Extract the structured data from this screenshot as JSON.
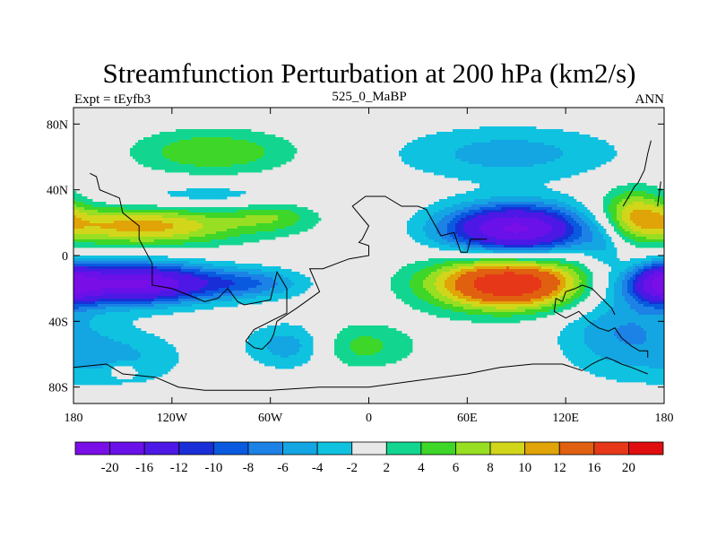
{
  "chart_data": {
    "type": "heatmap",
    "title": "Streamfunction Perturbation at 200 hPa (km2/s)",
    "left_label": "Expt = tEyfb3",
    "center_label": "525_0_MaBP",
    "right_label": "ANN",
    "x_ticks": [
      "180",
      "120W",
      "60W",
      "0",
      "60E",
      "120E",
      "180"
    ],
    "y_ticks": [
      "80N",
      "40N",
      "0",
      "40S",
      "80S"
    ],
    "x_range": [
      -180,
      180
    ],
    "y_range": [
      -90,
      90
    ],
    "x_tick_values": [
      -180,
      -120,
      -60,
      0,
      60,
      120,
      180
    ],
    "y_tick_values": [
      80,
      40,
      0,
      -40,
      -80
    ],
    "colorbar_labels": [
      "-20",
      "-16",
      "-12",
      "-10",
      "-8",
      "-6",
      "-4",
      "-2",
      "2",
      "4",
      "6",
      "8",
      "10",
      "12",
      "16",
      "20"
    ],
    "colorbar_levels": [
      -20,
      -16,
      -12,
      -10,
      -8,
      -6,
      -4,
      -2,
      2,
      4,
      6,
      8,
      10,
      12,
      16,
      20
    ],
    "colorbar_colors": [
      "#7a0ee6",
      "#6a10e8",
      "#4d18e6",
      "#1a2ed8",
      "#0a5ae0",
      "#1c82e6",
      "#13a6e2",
      "#0fc2e0",
      "#e8e8e8",
      "#12d690",
      "#3ed628",
      "#98de22",
      "#d2d61a",
      "#e0a408",
      "#e06010",
      "#e63818",
      "#e00e0e"
    ],
    "blobs": [
      {
        "lon": 90,
        "lat": 16,
        "rlon": 44,
        "rlat": 15,
        "peak": -21
      },
      {
        "lon": 143,
        "lat": 8,
        "rlon": 12,
        "rlat": 18,
        "peak": -3.5
      },
      {
        "lon": -95,
        "lat": 36,
        "rlon": 70,
        "rlat": 9,
        "peak": -3.5
      },
      {
        "lon": 85,
        "lat": 62,
        "rlon": 70,
        "rlat": 17,
        "peak": -5
      },
      {
        "lon": -145,
        "lat": -17,
        "rlon": 52,
        "rlat": 12,
        "peak": -21
      },
      {
        "lon": -70,
        "lat": -17,
        "rlon": 32,
        "rlat": 9,
        "peak": -6
      },
      {
        "lon": -45,
        "lat": -55,
        "rlon": 28,
        "rlat": 14,
        "peak": -8
      },
      {
        "lon": -150,
        "lat": -62,
        "rlon": 40,
        "rlat": 18,
        "peak": -4
      },
      {
        "lon": 155,
        "lat": -45,
        "rlon": 40,
        "rlat": 28,
        "peak": -6
      },
      {
        "lon": 178,
        "lat": -17,
        "rlon": 15,
        "rlat": 12,
        "peak": -10
      },
      {
        "lon": -138,
        "lat": 18,
        "rlon": 62,
        "rlat": 12,
        "peak": 11
      },
      {
        "lon": -58,
        "lat": 25,
        "rlon": 28,
        "rlat": 10,
        "peak": 5
      },
      {
        "lon": -95,
        "lat": 63,
        "rlon": 50,
        "rlat": 14,
        "peak": 6
      },
      {
        "lon": 86,
        "lat": -17,
        "rlon": 48,
        "rlat": 16,
        "peak": 20
      },
      {
        "lon": -15,
        "lat": -55,
        "rlon": 40,
        "rlat": 14,
        "peak": 6
      },
      {
        "lon": 162,
        "lat": 26,
        "rlon": 24,
        "rlat": 16,
        "peak": 9
      },
      {
        "lon": -150,
        "lat": -70,
        "rlon": 8,
        "rlat": 4,
        "peak": 4
      }
    ],
    "continent_outlines": [
      [
        [
          -170,
          50
        ],
        [
          -166,
          48
        ],
        [
          -164,
          40
        ],
        [
          -152,
          35
        ],
        [
          -150,
          26
        ],
        [
          -140,
          18
        ],
        [
          -140,
          10
        ],
        [
          -132,
          -5
        ],
        [
          -132,
          -18
        ],
        [
          -120,
          -20
        ],
        [
          -110,
          -24
        ],
        [
          -100,
          -28
        ],
        [
          -92,
          -26
        ],
        [
          -86,
          -20
        ],
        [
          -80,
          -28
        ],
        [
          -76,
          -30
        ],
        [
          -60,
          -27
        ],
        [
          -56,
          -10
        ],
        [
          -50,
          -20
        ],
        [
          -50,
          -35
        ],
        [
          -60,
          -40
        ],
        [
          -70,
          -45
        ],
        [
          -75,
          -52
        ],
        [
          -70,
          -56
        ],
        [
          -65,
          -57
        ],
        [
          -60,
          -52
        ],
        [
          -58,
          -48
        ],
        [
          -56,
          -40
        ],
        [
          -44,
          -32
        ],
        [
          -30,
          -22
        ],
        [
          -36,
          -8
        ],
        [
          -28,
          -8
        ],
        [
          -12,
          -2
        ],
        [
          0,
          0
        ],
        [
          0,
          6
        ],
        [
          -6,
          8
        ],
        [
          -4,
          10
        ],
        [
          0,
          18
        ],
        [
          -10,
          30
        ],
        [
          -2,
          36
        ],
        [
          10,
          36
        ],
        [
          20,
          30
        ],
        [
          30,
          30
        ],
        [
          35,
          28
        ],
        [
          44,
          12
        ],
        [
          52,
          14
        ],
        [
          56,
          2
        ],
        [
          60,
          2
        ],
        [
          62,
          10
        ],
        [
          72,
          10
        ]
      ],
      [
        [
          118,
          -28
        ],
        [
          114,
          -26
        ],
        [
          113,
          -34
        ],
        [
          120,
          -38
        ],
        [
          128,
          -34
        ],
        [
          134,
          -40
        ],
        [
          140,
          -44
        ],
        [
          146,
          -46
        ],
        [
          150,
          -44
        ],
        [
          154,
          -50
        ],
        [
          160,
          -55
        ],
        [
          165,
          -58
        ],
        [
          170,
          -58
        ],
        [
          170,
          -62
        ]
      ],
      [
        [
          118,
          -28
        ],
        [
          120,
          -22
        ],
        [
          126,
          -20
        ],
        [
          130,
          -18
        ],
        [
          136,
          -20
        ],
        [
          142,
          -26
        ],
        [
          148,
          -32
        ],
        [
          150,
          -36
        ]
      ],
      [
        [
          130,
          -70
        ],
        [
          136,
          -66
        ],
        [
          140,
          -64
        ],
        [
          145,
          -62
        ],
        [
          150,
          -64
        ],
        [
          154,
          -66
        ],
        [
          160,
          -68
        ],
        [
          165,
          -70
        ],
        [
          170,
          -72
        ]
      ],
      [
        [
          -180,
          -68
        ],
        [
          -160,
          -66
        ],
        [
          -150,
          -72
        ],
        [
          -130,
          -74
        ],
        [
          -116,
          -80
        ],
        [
          -100,
          -82
        ],
        [
          -80,
          -82
        ],
        [
          -60,
          -82
        ],
        [
          -30,
          -80
        ],
        [
          0,
          -80
        ],
        [
          30,
          -76
        ],
        [
          60,
          -72
        ],
        [
          80,
          -68
        ],
        [
          100,
          -66
        ],
        [
          118,
          -66
        ],
        [
          130,
          -70
        ]
      ],
      [
        [
          155,
          30
        ],
        [
          158,
          35
        ],
        [
          162,
          42
        ],
        [
          164,
          44
        ],
        [
          168,
          52
        ],
        [
          170,
          62
        ],
        [
          172,
          70
        ]
      ],
      [
        [
          176,
          30
        ],
        [
          178,
          45
        ]
      ]
    ]
  }
}
